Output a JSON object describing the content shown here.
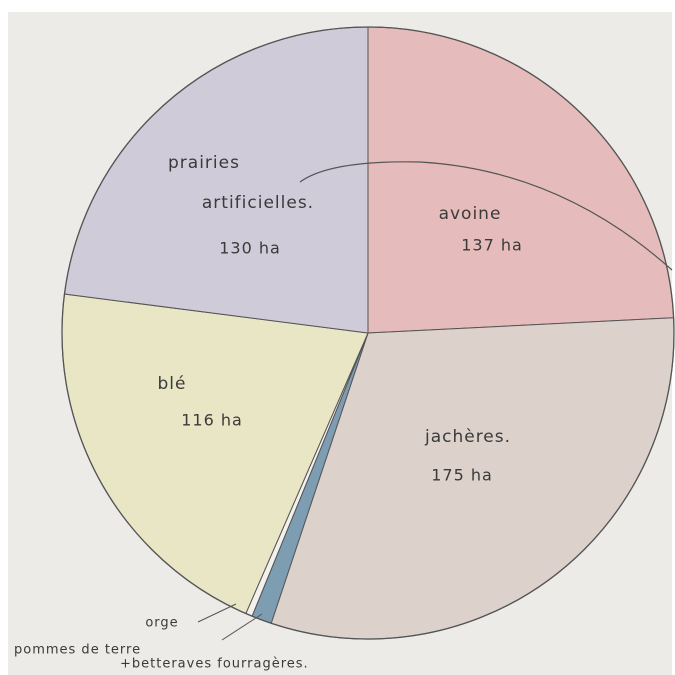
{
  "chart_data": {
    "type": "pie",
    "categories": [
      [
        "avoine"
      ],
      [
        "jachères."
      ],
      [
        "pommes de terre",
        "+betteraves fourragères."
      ],
      [
        "orge"
      ],
      [
        "blé"
      ],
      [
        "prairies",
        "artificielles."
      ]
    ],
    "values": [
      137,
      175,
      6,
      2,
      116,
      130
    ],
    "value_labels": [
      "137 ha",
      "175 ha",
      null,
      null,
      "116 ha",
      "130 ha"
    ],
    "colors": [
      "#e5bcbb",
      "#ddd1cc",
      "#7d9db3",
      "#f2f1ec",
      "#e9e6c6",
      "#cfcbd8"
    ]
  }
}
